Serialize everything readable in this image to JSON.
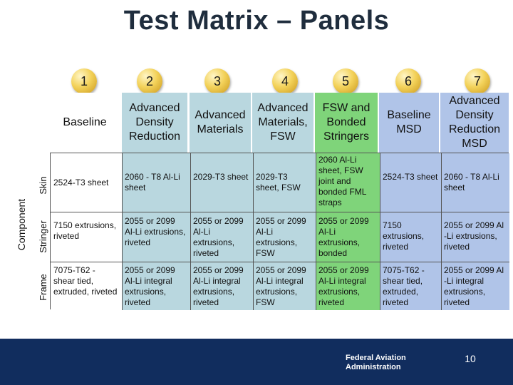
{
  "title": "Test Matrix – Panels",
  "columns": [
    {
      "num": "1",
      "header": "Baseline"
    },
    {
      "num": "2",
      "header": "Advanced Density Reduction"
    },
    {
      "num": "3",
      "header": "Advanced Materials"
    },
    {
      "num": "4",
      "header": "Advanced Materials, FSW"
    },
    {
      "num": "5",
      "header": "FSW and Bonded Stringers"
    },
    {
      "num": "6",
      "header": "Baseline MSD"
    },
    {
      "num": "7",
      "header": "Advanced Density Reduction MSD"
    }
  ],
  "component_label": "Component",
  "rows": [
    {
      "label": "Skin",
      "cells": [
        "2524-T3 sheet",
        "2060 - T8 Al-Li sheet",
        "2029-T3 sheet",
        "2029-T3 sheet, FSW",
        "2060 Al-Li sheet, FSW joint and bonded FML straps",
        "2524-T3 sheet",
        "2060 - T8 Al-Li sheet"
      ]
    },
    {
      "label": "Stringer",
      "cells": [
        "7150 extrusions, riveted",
        "2055 or 2099 Al-Li extrusions, riveted",
        "2055 or 2099 Al-Li extrusions, riveted",
        "2055 or 2099 Al-Li extrusions, FSW",
        "2055 or 2099 Al-Li extrusions, bonded",
        "7150 extrusions, riveted",
        "2055 or 2099 Al -Li extrusions, riveted"
      ]
    },
    {
      "label": "Frame",
      "cells": [
        "7075-T62 - shear tied, extruded, riveted",
        "2055 or 2099 Al-Li integral extrusions, riveted",
        "2055 or 2099 Al-Li integral extrusions, riveted",
        "2055 or 2099 Al-Li integral extrusions, FSW",
        "2055 or 2099 Al-Li integral extrusions, riveted",
        "7075-T62 - shear tied, extruded, riveted",
        "2055 or 2099 Al -Li integral extrusions, riveted"
      ]
    }
  ],
  "footer": {
    "org": "Federal Aviation\nAdministration",
    "page": "10"
  },
  "colors": {
    "shaded": "#b9d7df",
    "green": "#7fd47a",
    "blue": "#b0c4e8",
    "footer": "#112d5e",
    "circle": "#f3d25a"
  }
}
